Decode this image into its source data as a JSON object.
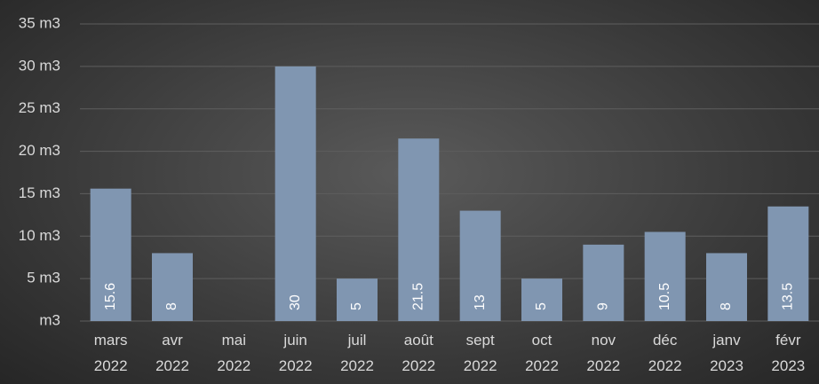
{
  "chart_data": {
    "type": "bar",
    "categories": [
      [
        "mars",
        "2022"
      ],
      [
        "avr",
        "2022"
      ],
      [
        "mai",
        "2022"
      ],
      [
        "juin",
        "2022"
      ],
      [
        "juil",
        "2022"
      ],
      [
        "août",
        "2022"
      ],
      [
        "sept",
        "2022"
      ],
      [
        "oct",
        "2022"
      ],
      [
        "nov",
        "2022"
      ],
      [
        "déc",
        "2022"
      ],
      [
        "janv",
        "2023"
      ],
      [
        "févr",
        "2023"
      ]
    ],
    "values": [
      15.6,
      8,
      null,
      30,
      5,
      21.5,
      13,
      5,
      9,
      10.5,
      8,
      13.5
    ],
    "color": "#8096b1",
    "ylim": [
      0,
      35
    ],
    "yticks": [
      {
        "value": 0,
        "label": "m3"
      },
      {
        "value": 5,
        "label": "5 m3"
      },
      {
        "value": 10,
        "label": "10 m3"
      },
      {
        "value": 15,
        "label": "15 m3"
      },
      {
        "value": 20,
        "label": "20 m3"
      },
      {
        "value": 25,
        "label": "25 m3"
      },
      {
        "value": 30,
        "label": "30 m3"
      },
      {
        "value": 35,
        "label": "35 m3"
      }
    ],
    "grid": true
  }
}
